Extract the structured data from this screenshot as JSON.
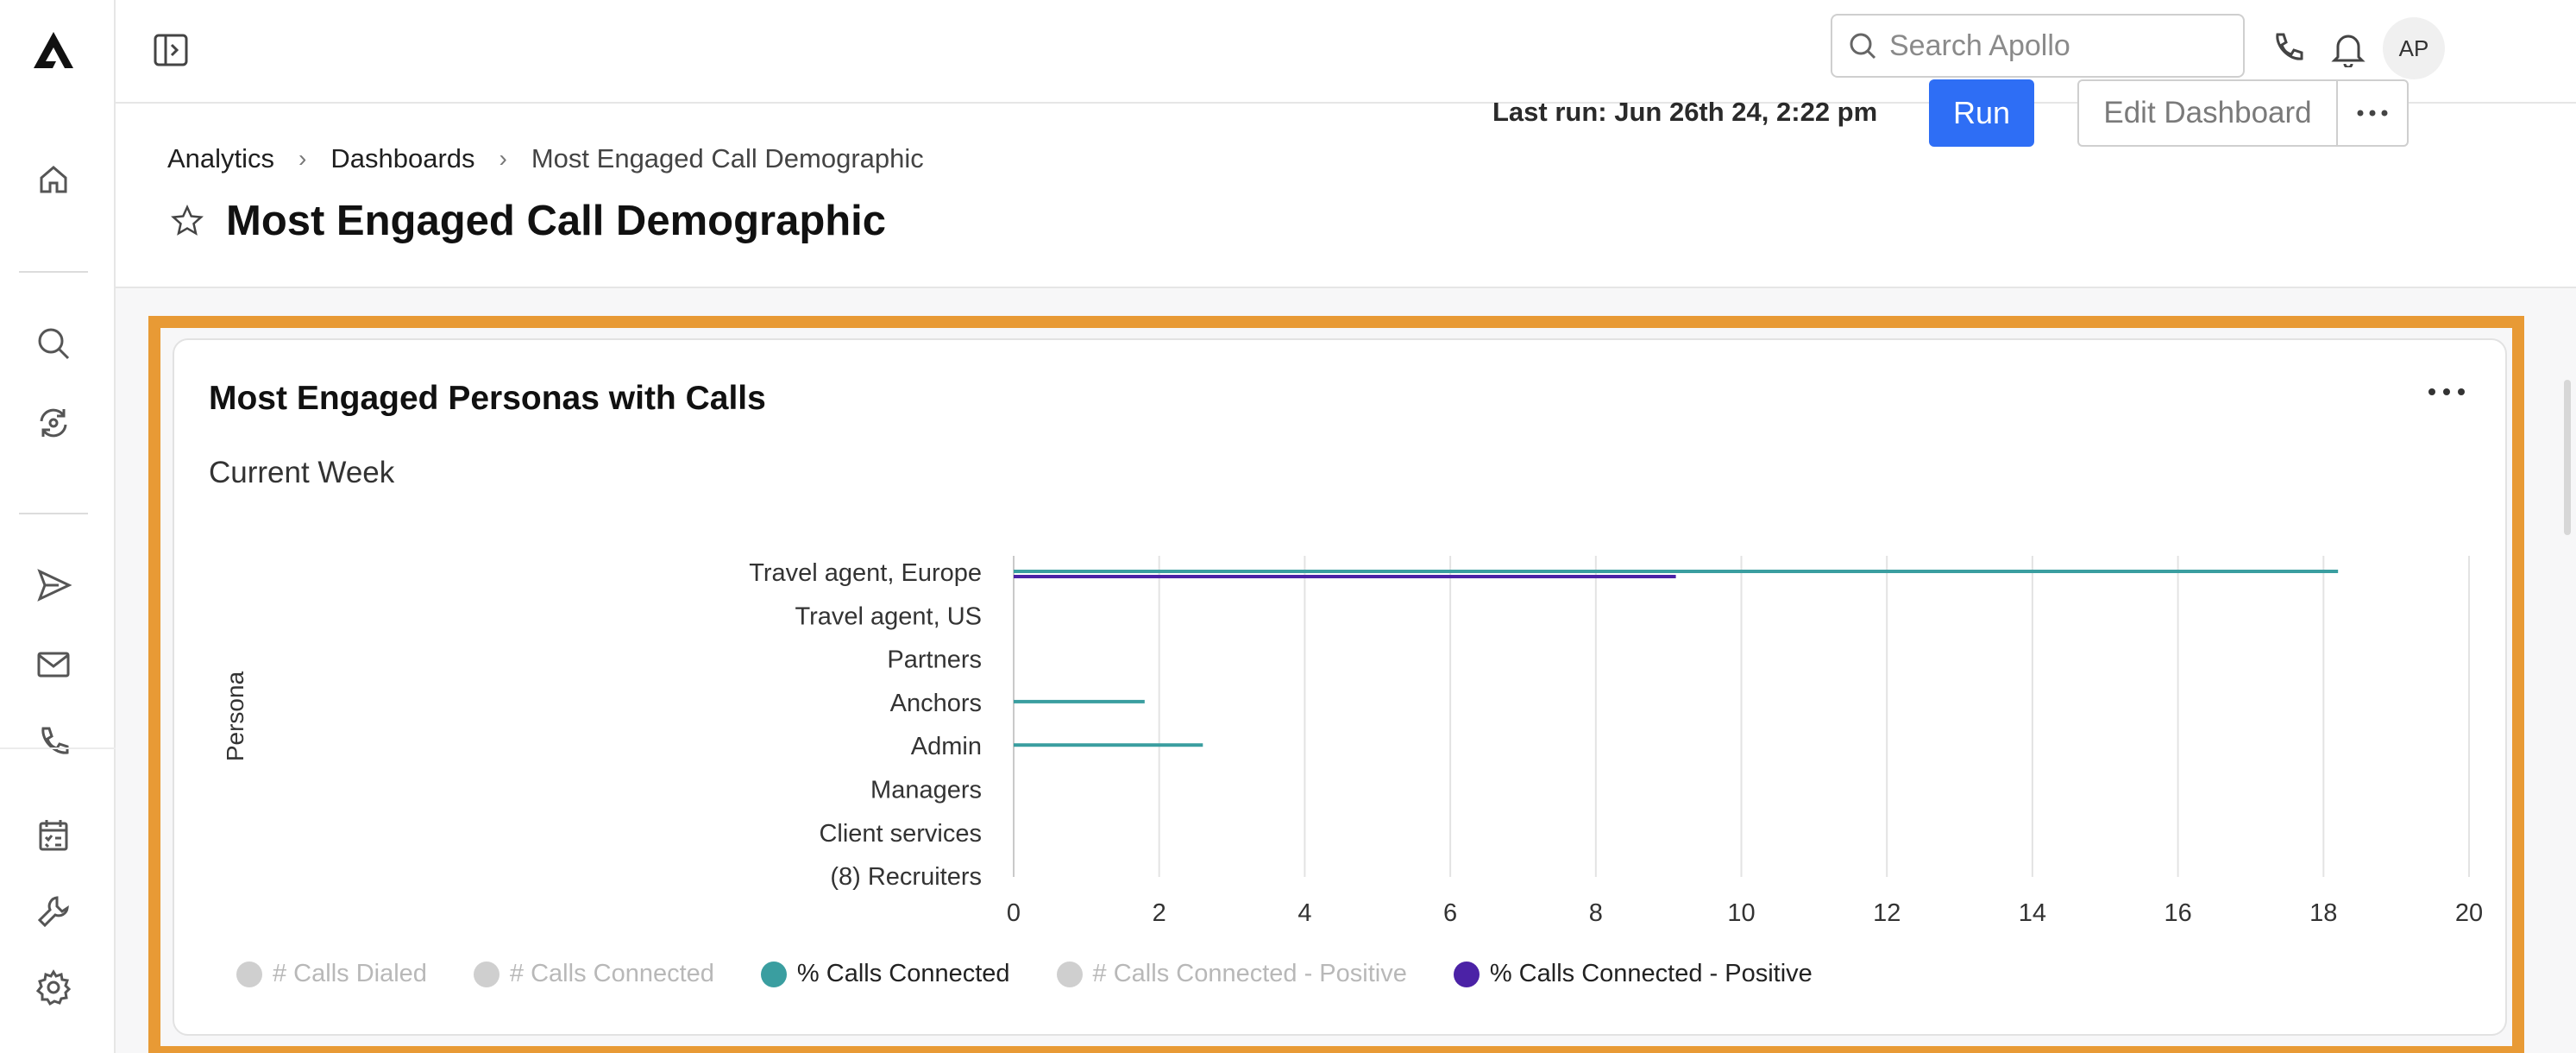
{
  "topbar": {
    "search_placeholder": "Search Apollo",
    "avatar_initials": "AP"
  },
  "breadcrumb": {
    "items": [
      "Analytics",
      "Dashboards",
      "Most Engaged Call Demographic"
    ]
  },
  "header": {
    "title": "Most Engaged Call Demographic",
    "last_run": "Last run: Jun 26th 24, 2:22 pm",
    "run_label": "Run",
    "edit_label": "Edit Dashboard"
  },
  "colors": {
    "accent": "#2e6ef5",
    "highlight": "#e89a35",
    "teal": "#3a9ea0",
    "purple": "#4b22a6",
    "legend_inactive": "#cfcfcf"
  },
  "card": {
    "title": "Most Engaged Personas with Calls",
    "subtitle": "Current Week"
  },
  "chart_data": {
    "type": "bar",
    "orientation": "horizontal",
    "ylabel": "Persona",
    "categories": [
      "Travel agent, Europe",
      "Travel agent, US",
      "Partners",
      "Anchors",
      "Admin",
      "Managers",
      "Client services",
      "(8) Recruiters"
    ],
    "xlim": [
      0,
      20
    ],
    "xticks": [
      "0",
      "2",
      "4",
      "6",
      "8",
      "10",
      "12",
      "14",
      "16",
      "18",
      "20"
    ],
    "grid": "vertical",
    "legend_position": "bottom",
    "series": [
      {
        "name": "# Calls Dialed",
        "active": false,
        "color": "#cfcfcf",
        "values": [
          null,
          null,
          null,
          null,
          null,
          null,
          null,
          null
        ]
      },
      {
        "name": "# Calls Connected",
        "active": false,
        "color": "#cfcfcf",
        "values": [
          null,
          null,
          null,
          null,
          null,
          null,
          null,
          null
        ]
      },
      {
        "name": "% Calls Connected",
        "active": true,
        "color": "#3a9ea0",
        "values": [
          18.2,
          0,
          0,
          1.8,
          2.6,
          0,
          0,
          0
        ]
      },
      {
        "name": "# Calls Connected - Positive",
        "active": false,
        "color": "#cfcfcf",
        "values": [
          null,
          null,
          null,
          null,
          null,
          null,
          null,
          null
        ]
      },
      {
        "name": "% Calls Connected - Positive",
        "active": true,
        "color": "#4b22a6",
        "values": [
          9.1,
          0,
          0,
          0,
          0,
          0,
          0,
          0
        ]
      }
    ]
  }
}
